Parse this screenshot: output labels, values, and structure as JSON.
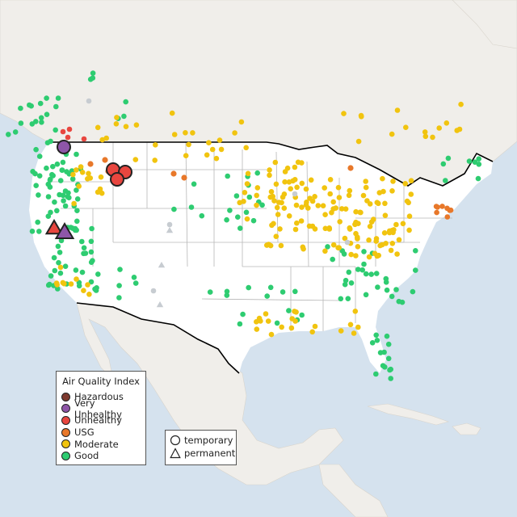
{
  "legend": {
    "title": "Air Quality Index",
    "categories": [
      {
        "label": "Hazardous",
        "color": "#7e3a2f"
      },
      {
        "label": "Very Unhealthy",
        "color": "#8e56a8"
      },
      {
        "label": "Unhealthy",
        "color": "#e8463f"
      },
      {
        "label": "USG",
        "color": "#e8782a"
      },
      {
        "label": "Moderate",
        "color": "#f1c40f"
      },
      {
        "label": "Good",
        "color": "#2ecc71"
      }
    ]
  },
  "monitor_types": [
    {
      "label": "temporary",
      "shape": "circle"
    },
    {
      "label": "permanent",
      "shape": "triangle"
    }
  ],
  "colors": {
    "ocean": "#d5e2ee",
    "land": "#f0eeea",
    "us_land": "#ffffff",
    "border": "#000000",
    "state_line": "#b7b7b7",
    "no_data": "#c7ccd1"
  }
}
